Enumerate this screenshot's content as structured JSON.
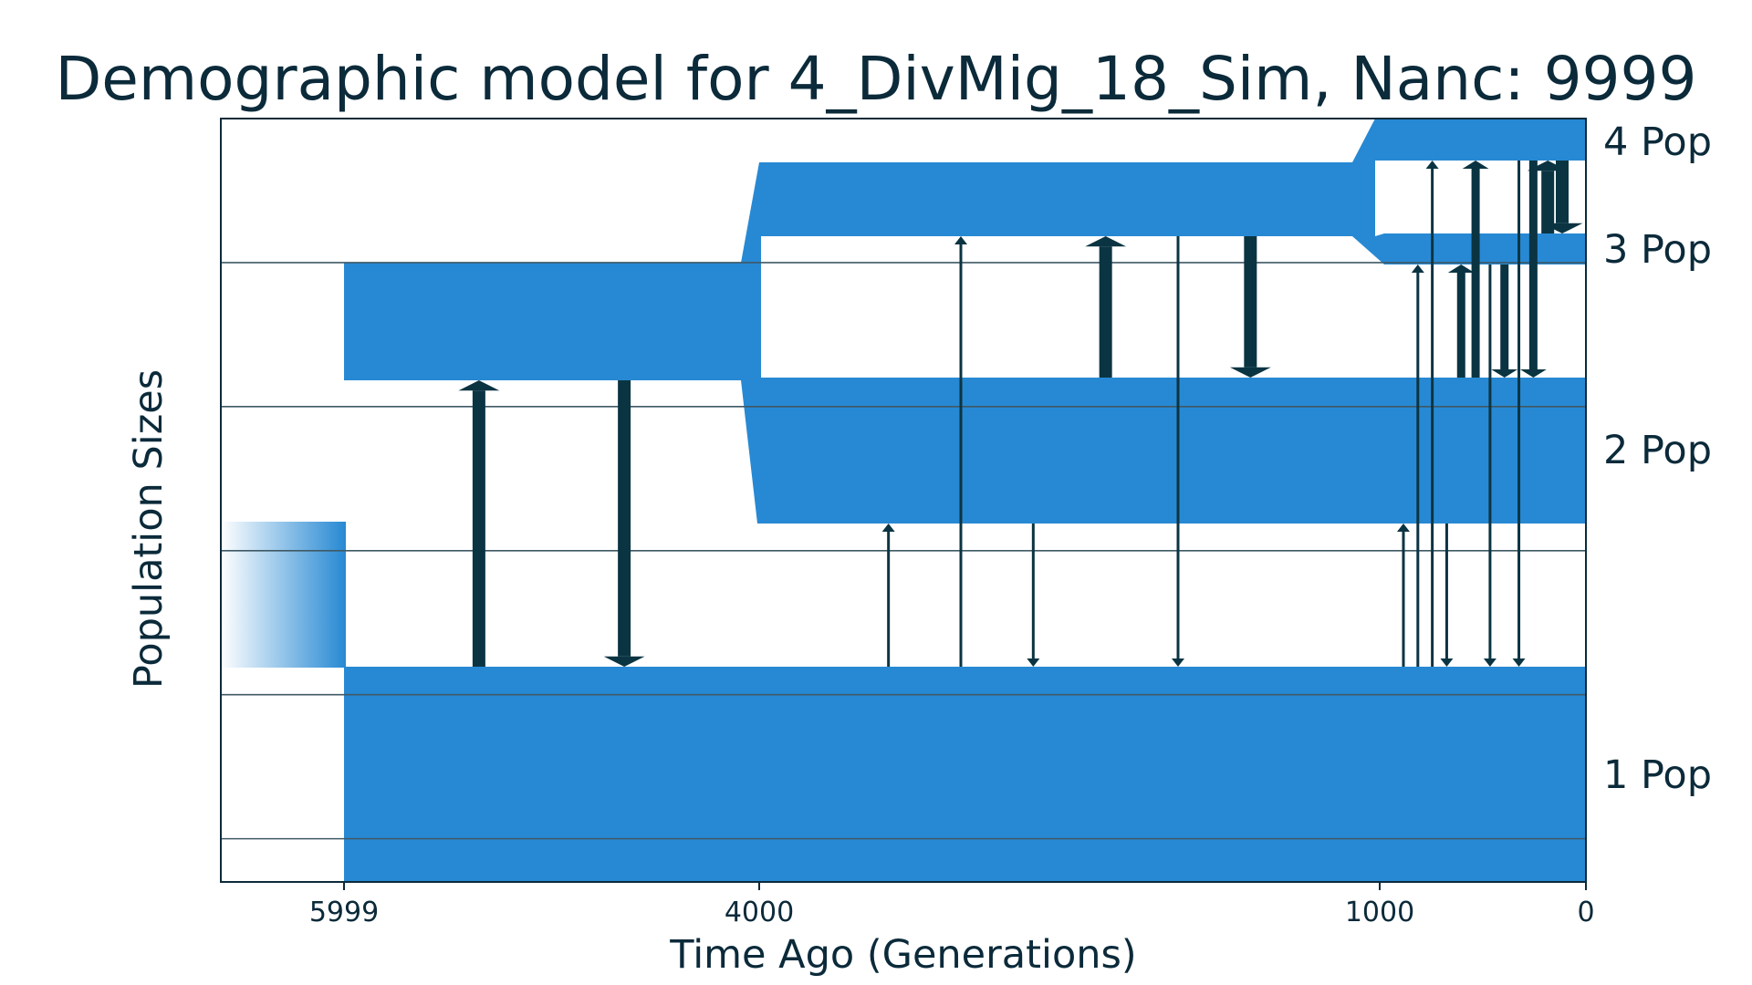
{
  "chart_data": {
    "type": "demographic-model",
    "title": "Demographic model for 4_DivMig_18_Sim, Nanc: 9999",
    "xlabel": "Time Ago (Generations)",
    "ylabel": "Population Sizes",
    "x_ticks": [
      {
        "value": 5999,
        "label": "5999"
      },
      {
        "value": 4000,
        "label": "4000"
      },
      {
        "value": 1000,
        "label": "1000"
      },
      {
        "value": 0,
        "label": "0"
      }
    ],
    "x_axis": "piecewise, reversed (older left, present right)",
    "grid": true,
    "colors": {
      "population": "#2789d3",
      "arrow": "#0b3442",
      "grid": "#3f5966",
      "axis": "#0b2a3a",
      "text": "#0b2a3a"
    },
    "population_labels": [
      "1 Pop",
      "2 Pop",
      "3 Pop",
      "4 Pop"
    ],
    "epochs": [
      {
        "start": 5999,
        "end": 4000,
        "populations": 2
      },
      {
        "start": 4000,
        "end": 1000,
        "populations": 3
      },
      {
        "start": 1000,
        "end": 0,
        "populations": 4
      }
    ],
    "migrations": [
      {
        "from": "1 Pop",
        "to": "2 Pop",
        "epoch": 1,
        "strength": "strong"
      },
      {
        "from": "2 Pop",
        "to": "1 Pop",
        "epoch": 1,
        "strength": "strong"
      },
      {
        "from": "1 Pop",
        "to": "2 Pop",
        "epoch": 2,
        "strength": "weak"
      },
      {
        "from": "1 Pop",
        "to": "3 Pop",
        "epoch": 2,
        "strength": "weak"
      },
      {
        "from": "2 Pop",
        "to": "1 Pop",
        "epoch": 2,
        "strength": "weak"
      },
      {
        "from": "2 Pop",
        "to": "3 Pop",
        "epoch": 2,
        "strength": "strong"
      },
      {
        "from": "3 Pop",
        "to": "1 Pop",
        "epoch": 2,
        "strength": "weak"
      },
      {
        "from": "3 Pop",
        "to": "2 Pop",
        "epoch": 2,
        "strength": "strong"
      },
      {
        "from": "1 Pop",
        "to": "2 Pop",
        "epoch": 3,
        "strength": "weak"
      },
      {
        "from": "1 Pop",
        "to": "3 Pop",
        "epoch": 3,
        "strength": "weak"
      },
      {
        "from": "1 Pop",
        "to": "4 Pop",
        "epoch": 3,
        "strength": "weak"
      },
      {
        "from": "2 Pop",
        "to": "1 Pop",
        "epoch": 3,
        "strength": "weak"
      },
      {
        "from": "2 Pop",
        "to": "3 Pop",
        "epoch": 3,
        "strength": "medium"
      },
      {
        "from": "2 Pop",
        "to": "4 Pop",
        "epoch": 3,
        "strength": "medium"
      },
      {
        "from": "3 Pop",
        "to": "1 Pop",
        "epoch": 3,
        "strength": "weak"
      },
      {
        "from": "3 Pop",
        "to": "2 Pop",
        "epoch": 3,
        "strength": "medium"
      },
      {
        "from": "4 Pop",
        "to": "1 Pop",
        "epoch": 3,
        "strength": "weak"
      },
      {
        "from": "4 Pop",
        "to": "2 Pop",
        "epoch": 3,
        "strength": "medium"
      },
      {
        "from": "3 Pop",
        "to": "4 Pop",
        "epoch": 3,
        "strength": "strong"
      },
      {
        "from": "4 Pop",
        "to": "3 Pop",
        "epoch": 3,
        "strength": "strong"
      }
    ]
  }
}
